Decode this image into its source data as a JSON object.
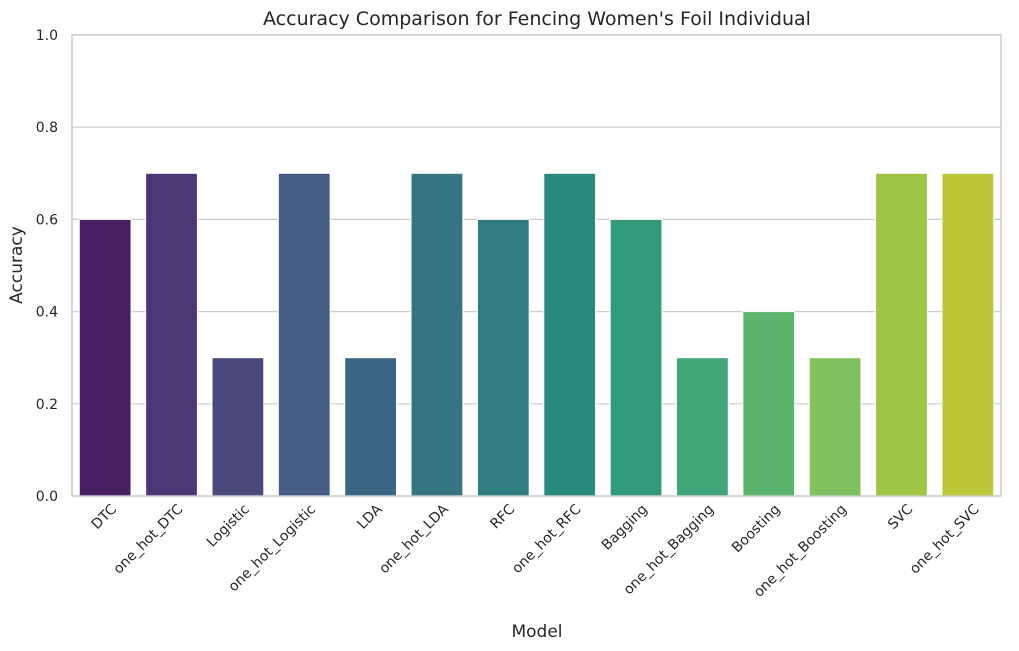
{
  "chart_data": {
    "type": "bar",
    "title": "Accuracy Comparison for Fencing Women's Foil Individual",
    "xlabel": "Model",
    "ylabel": "Accuracy",
    "ylim": [
      0,
      1.0
    ],
    "yticks": [
      "0.0",
      "0.2",
      "0.4",
      "0.6",
      "0.8",
      "1.0"
    ],
    "grid": "horizontal",
    "categories": [
      "DTC",
      "one_hot_DTC",
      "Logistic",
      "one_hot_Logistic",
      "LDA",
      "one_hot_LDA",
      "RFC",
      "one_hot_RFC",
      "Bagging",
      "one_hot_Bagging",
      "Boosting",
      "one_hot_Boosting",
      "SVC",
      "one_hot_SVC"
    ],
    "values": [
      0.6,
      0.7,
      0.3,
      0.7,
      0.3,
      0.7,
      0.6,
      0.7,
      0.6,
      0.3,
      0.4,
      0.3,
      0.7,
      0.7
    ],
    "colors": [
      "#481f62",
      "#4b3676",
      "#484a7c",
      "#445b83",
      "#3b6584",
      "#357582",
      "#2f7d80",
      "#2a897e",
      "#319a7b",
      "#40a677",
      "#5bb46b",
      "#80c160",
      "#9ec644",
      "#bcc83a"
    ]
  }
}
